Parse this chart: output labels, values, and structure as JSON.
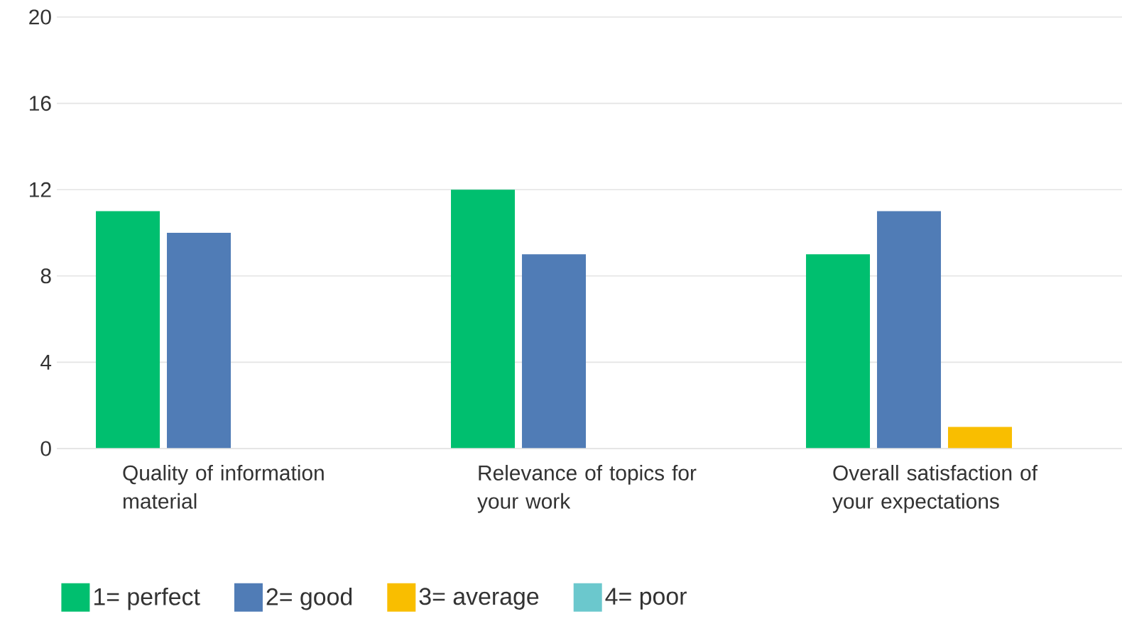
{
  "chart_data": {
    "type": "bar",
    "categories": [
      "Quality of information material",
      "Relevance of topics for your work",
      "Overall satisfaction of your expectations"
    ],
    "series": [
      {
        "name": "1= perfect",
        "color": "#00bf6f",
        "values": [
          11,
          12,
          9
        ]
      },
      {
        "name": "2= good",
        "color": "#507cb6",
        "values": [
          10,
          9,
          11
        ]
      },
      {
        "name": "3= average",
        "color": "#f9be00",
        "values": [
          0,
          0,
          1
        ]
      },
      {
        "name": "4= poor",
        "color": "#6bc8cd",
        "values": [
          0,
          0,
          0
        ]
      }
    ],
    "ylim": [
      0,
      20
    ],
    "yticks": [
      0,
      4,
      8,
      12,
      16,
      20
    ],
    "grid": "y",
    "legend": "bottom"
  }
}
